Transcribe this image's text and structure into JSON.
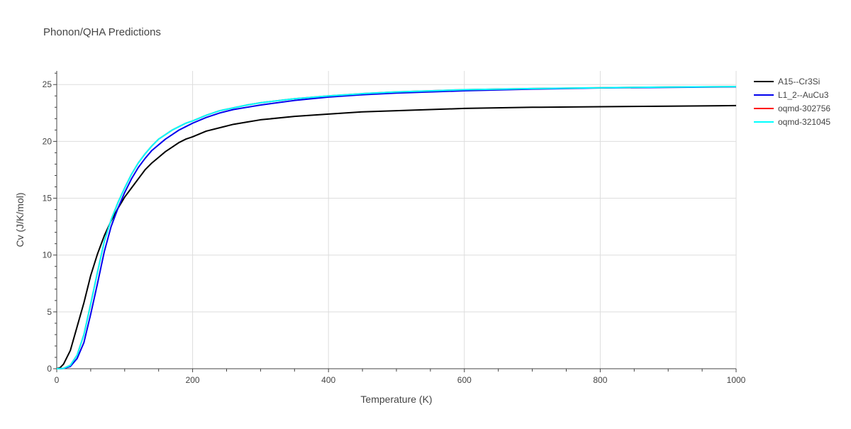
{
  "chart_data": {
    "type": "line",
    "title": "Phonon/QHA Predictions",
    "xlabel": "Temperature (K)",
    "ylabel": "Cv (J/K/mol)",
    "xlim": [
      0,
      1000
    ],
    "ylim": [
      0,
      26.2
    ],
    "x_ticks": [
      0,
      200,
      400,
      600,
      800,
      1000
    ],
    "y_ticks": [
      0,
      5,
      10,
      15,
      20,
      25
    ],
    "grid": true,
    "legend_position": "right",
    "series": [
      {
        "name": "A15--Cr3Si",
        "color": "#000000",
        "x": [
          0,
          5,
          10,
          20,
          30,
          40,
          50,
          60,
          70,
          80,
          90,
          100,
          110,
          120,
          130,
          140,
          150,
          160,
          170,
          180,
          190,
          200,
          220,
          240,
          260,
          280,
          300,
          350,
          400,
          450,
          500,
          600,
          700,
          800,
          900,
          1000
        ],
        "y": [
          0,
          0.1,
          0.4,
          1.6,
          3.7,
          5.8,
          8.2,
          10.1,
          11.7,
          13.0,
          14.1,
          15.1,
          15.9,
          16.7,
          17.5,
          18.1,
          18.6,
          19.1,
          19.5,
          19.9,
          20.2,
          20.4,
          20.9,
          21.2,
          21.5,
          21.7,
          21.9,
          22.2,
          22.4,
          22.6,
          22.7,
          22.9,
          23.0,
          23.05,
          23.1,
          23.15
        ]
      },
      {
        "name": "L1_2--AuCu3",
        "color": "#0000ee",
        "x": [
          0,
          10,
          20,
          30,
          40,
          50,
          60,
          70,
          80,
          90,
          100,
          110,
          120,
          130,
          140,
          150,
          160,
          170,
          180,
          190,
          200,
          220,
          240,
          260,
          280,
          300,
          350,
          400,
          450,
          500,
          600,
          700,
          800,
          900,
          1000
        ],
        "y": [
          0,
          0.02,
          0.2,
          0.9,
          2.3,
          4.8,
          7.5,
          10.3,
          12.5,
          14.1,
          15.5,
          16.7,
          17.7,
          18.5,
          19.2,
          19.7,
          20.2,
          20.6,
          21.0,
          21.3,
          21.6,
          22.1,
          22.5,
          22.8,
          23.0,
          23.2,
          23.6,
          23.9,
          24.1,
          24.25,
          24.45,
          24.6,
          24.7,
          24.75,
          24.8
        ]
      },
      {
        "name": "oqmd-302756",
        "color": "#ff0000",
        "x": [
          0,
          10,
          20,
          30,
          40,
          50,
          60,
          70,
          80,
          90,
          100,
          110,
          120,
          130,
          140,
          150,
          160,
          170,
          180,
          190,
          200,
          220,
          240,
          260,
          280,
          300,
          350,
          400,
          450,
          500,
          600,
          700,
          800,
          900,
          1000
        ],
        "y": [
          0,
          0.03,
          0.3,
          1.2,
          3.0,
          5.7,
          8.5,
          11.2,
          13.1,
          14.6,
          15.9,
          17.1,
          18.1,
          18.9,
          19.6,
          20.2,
          20.6,
          21.0,
          21.3,
          21.6,
          21.8,
          22.3,
          22.7,
          22.95,
          23.2,
          23.4,
          23.75,
          24.0,
          24.2,
          24.35,
          24.55,
          24.65,
          24.72,
          24.78,
          24.82
        ]
      },
      {
        "name": "oqmd-321045",
        "color": "#00ffff",
        "x": [
          0,
          10,
          20,
          30,
          40,
          50,
          60,
          70,
          80,
          90,
          100,
          110,
          120,
          130,
          140,
          150,
          160,
          170,
          180,
          190,
          200,
          220,
          240,
          260,
          280,
          300,
          350,
          400,
          450,
          500,
          600,
          700,
          800,
          900,
          1000
        ],
        "y": [
          0,
          0.03,
          0.3,
          1.2,
          3.0,
          5.7,
          8.5,
          11.2,
          13.1,
          14.6,
          15.9,
          17.1,
          18.1,
          18.9,
          19.6,
          20.2,
          20.6,
          21.0,
          21.3,
          21.6,
          21.8,
          22.3,
          22.7,
          22.95,
          23.2,
          23.4,
          23.75,
          24.0,
          24.2,
          24.35,
          24.55,
          24.65,
          24.72,
          24.78,
          24.82
        ]
      }
    ]
  }
}
